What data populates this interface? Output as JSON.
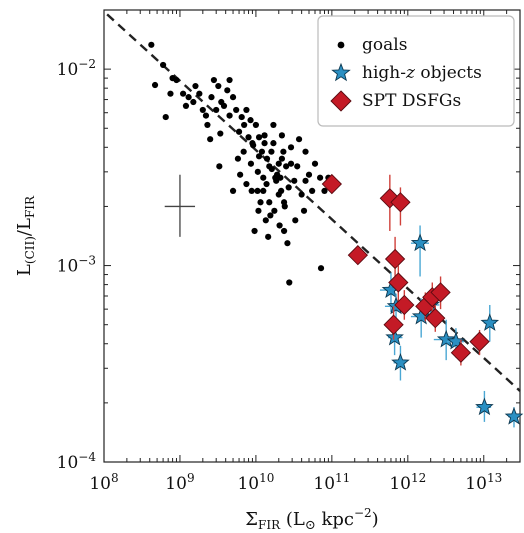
{
  "chart_data": {
    "type": "scatter",
    "xlabel": {
      "main": "Σ",
      "sub": "FIR",
      "rest": " (L",
      "sym": "⊙",
      "unit": " kpc",
      "exp": "−2",
      "close": ")"
    },
    "ylabel": {
      "p1": "L",
      "s1": "(CII)",
      "slash": "/L",
      "s2": "FIR"
    },
    "xscale": "log",
    "yscale": "log",
    "xlim": [
      100000000.0,
      30000000000000.0
    ],
    "ylim": [
      0.0001,
      0.02
    ],
    "x_ticks": [
      {
        "value": 100000000.0,
        "base": "10",
        "exp": "8"
      },
      {
        "value": 1000000000.0,
        "base": "10",
        "exp": "9"
      },
      {
        "value": 10000000000.0,
        "base": "10",
        "exp": "10"
      },
      {
        "value": 100000000000.0,
        "base": "10",
        "exp": "11"
      },
      {
        "value": 1000000000000.0,
        "base": "10",
        "exp": "12"
      },
      {
        "value": 10000000000000.0,
        "base": "10",
        "exp": "13"
      }
    ],
    "y_ticks": [
      {
        "value": 0.0001,
        "base": "10",
        "exp": "−4"
      },
      {
        "value": 0.001,
        "base": "10",
        "exp": "−3"
      },
      {
        "value": 0.01,
        "base": "10",
        "exp": "−2"
      }
    ],
    "legend": {
      "placement": "top-right",
      "entries": [
        {
          "label": "goals",
          "marker": "dot"
        },
        {
          "label_parts": [
            "high-",
            "z",
            " objects"
          ],
          "marker": "star"
        },
        {
          "label": "SPT DSFGs",
          "marker": "diamond"
        }
      ]
    },
    "fit_line": {
      "style": "dashed",
      "color": "#222222",
      "points": [
        [
          110000000.0,
          0.019
        ],
        [
          30000000000000.0,
          0.00023
        ]
      ]
    },
    "typical_error": {
      "x": 1000000000.0,
      "y": 0.002,
      "x_err": [
        630000000.0,
        1580000000.0
      ],
      "y_err": [
        0.0014,
        0.0029
      ]
    },
    "colors": {
      "goals": "#000000",
      "high_z": "#2a8fc2",
      "spt": "#c41a26",
      "spt_err": "#d0403a",
      "high_z_err": "#4aa7d4"
    },
    "series": [
      {
        "name": "goals",
        "marker": "dot",
        "points": [
          [
            420000000.0,
            0.0133
          ],
          [
            470000000.0,
            0.0083
          ],
          [
            600000000.0,
            0.0105
          ],
          [
            650000000.0,
            0.0057
          ],
          [
            750000000.0,
            0.0075
          ],
          [
            800000000.0,
            0.009
          ],
          [
            900000000.0,
            0.0088
          ],
          [
            1100000000.0,
            0.0075
          ],
          [
            1200000000.0,
            0.0065
          ],
          [
            1300000000.0,
            0.0072
          ],
          [
            1500000000.0,
            0.0068
          ],
          [
            1600000000.0,
            0.0082
          ],
          [
            1800000000.0,
            0.0075
          ],
          [
            2000000000.0,
            0.0062
          ],
          [
            2200000000.0,
            0.0058
          ],
          [
            2300000000.0,
            0.0052
          ],
          [
            2600000000.0,
            0.0072
          ],
          [
            2800000000.0,
            0.0088
          ],
          [
            3000000000.0,
            0.0062
          ],
          [
            3200000000.0,
            0.0082
          ],
          [
            3500000000.0,
            0.0068
          ],
          [
            3800000000.0,
            0.0065
          ],
          [
            4200000000.0,
            0.0078
          ],
          [
            4500000000.0,
            0.0058
          ],
          [
            5000000000.0,
            0.0072
          ],
          [
            5500000000.0,
            0.0062
          ],
          [
            6000000000.0,
            0.0048
          ],
          [
            6500000000.0,
            0.0057
          ],
          [
            7000000000.0,
            0.0052
          ],
          [
            7500000000.0,
            0.0062
          ],
          [
            8000000000.0,
            0.0045
          ],
          [
            8500000000.0,
            0.0055
          ],
          [
            9000000000.0,
            0.0042
          ],
          [
            10000000000.0,
            0.0052
          ],
          [
            11000000000.0,
            0.0045
          ],
          [
            12000000000.0,
            0.0038
          ],
          [
            13000000000.0,
            0.0042
          ],
          [
            14000000000.0,
            0.0035
          ],
          [
            15000000000.0,
            0.0032
          ],
          [
            16000000000.0,
            0.0038
          ],
          [
            17000000000.0,
            0.0042
          ],
          [
            18000000000.0,
            0.0028
          ],
          [
            20000000000.0,
            0.0033
          ],
          [
            21000000000.0,
            0.0028
          ],
          [
            23000000000.0,
            0.0038
          ],
          [
            25000000000.0,
            0.0032
          ],
          [
            27000000000.0,
            0.0025
          ],
          [
            29000000000.0,
            0.0033
          ],
          [
            32000000000.0,
            0.0027
          ],
          [
            35000000000.0,
            0.0032
          ],
          [
            40000000000.0,
            0.0023
          ],
          [
            45000000000.0,
            0.0027
          ],
          [
            50000000000.0,
            0.0029
          ],
          [
            55000000000.0,
            0.0024
          ],
          [
            60000000000.0,
            0.0033
          ],
          [
            70000000000.0,
            0.0028
          ],
          [
            80000000000.0,
            0.0024
          ],
          [
            90000000000.0,
            0.0028
          ],
          [
            11000000000.0,
            0.0036
          ],
          [
            10500000000.0,
            0.0024
          ],
          [
            11500000000.0,
            0.0021
          ],
          [
            12500000000.0,
            0.0024
          ],
          [
            13500000000.0,
            0.0017
          ],
          [
            15500000000.0,
            0.0018
          ],
          [
            17500000000.0,
            0.0019
          ],
          [
            20500000000.0,
            0.0016
          ],
          [
            23500000000.0,
            0.0015
          ],
          [
            26000000000.0,
            0.0013
          ],
          [
            33000000000.0,
            0.0017
          ],
          [
            43000000000.0,
            0.0019
          ],
          [
            13000000000.0,
            0.0046
          ],
          [
            9200000000.0,
            0.0041
          ],
          [
            17000000000.0,
            0.0052
          ],
          [
            22000000000.0,
            0.0046
          ],
          [
            4500000000.0,
            0.0088
          ],
          [
            3400000000.0,
            0.0047
          ],
          [
            5800000000.0,
            0.0035
          ],
          [
            3300000000.0,
            0.0032
          ],
          [
            2500000000.0,
            0.0044
          ],
          [
            8600000000.0,
            0.0033
          ],
          [
            6900000000.0,
            0.0038
          ],
          [
            12500000000.0,
            0.0028
          ],
          [
            19000000000.0,
            0.0029
          ],
          [
            23500000000.0,
            0.0021
          ],
          [
            22000000000.0,
            0.0035
          ],
          [
            21500000000.0,
            0.0024
          ],
          [
            18500000000.0,
            0.0027
          ],
          [
            16200000000.0,
            0.0031
          ],
          [
            27500000000.0,
            0.00082
          ],
          [
            72000000000.0,
            0.00097
          ],
          [
            45000000000.0,
            0.0038
          ],
          [
            37000000000.0,
            0.0044
          ],
          [
            29000000000.0,
            0.004
          ],
          [
            8800000000.0,
            0.0024
          ],
          [
            6200000000.0,
            0.0029
          ],
          [
            7500000000.0,
            0.0026
          ],
          [
            5000000000.0,
            0.0024
          ],
          [
            10600000000.0,
            0.003
          ],
          [
            13800000000.0,
            0.0026
          ],
          [
            10800000000.0,
            0.0019
          ],
          [
            15000000000.0,
            0.0021
          ],
          [
            20000000000.0,
            0.0023
          ],
          [
            24000000000.0,
            0.002
          ],
          [
            14500000000.0,
            0.0014
          ],
          [
            9600000000.0,
            0.0015
          ]
        ]
      },
      {
        "name": "high-z objects",
        "marker": "star",
        "points": [
          {
            "x": 600000000000.0,
            "y": 0.00075,
            "xerr": [
              430000000000.0,
              800000000000.0
            ],
            "yerr": [
              0.00058,
              0.00092
            ]
          },
          {
            "x": 700000000000.0,
            "y": 0.00062,
            "xerr": [
              500000000000.0,
              950000000000.0
            ],
            "yerr": [
              0.0005,
              0.00072
            ]
          },
          {
            "x": 670000000000.0,
            "y": 0.00043,
            "xerr": [
              550000000000.0,
              850000000000.0
            ],
            "yerr": [
              0.00035,
              0.00055
            ]
          },
          {
            "x": 800000000000.0,
            "y": 0.00032,
            "xerr": [
              650000000000.0,
              950000000000.0
            ],
            "yerr": [
              0.00026,
              0.00039
            ]
          },
          {
            "x": 1450000000000.0,
            "y": 0.0013,
            "xerr": [
              1100000000000.0,
              1900000000000.0
            ],
            "yerr": [
              0.00088,
              0.0016
            ]
          },
          {
            "x": 1500000000000.0,
            "y": 0.00055,
            "xerr": [
              1100000000000.0,
              2100000000000.0
            ],
            "yerr": [
              0.00043,
              0.00068
            ]
          },
          {
            "x": 2000000000000.0,
            "y": 0.00063,
            "xerr": [
              1600000000000.0,
              2600000000000.0
            ],
            "yerr": [
              0.00052,
              0.00075
            ]
          },
          {
            "x": 3200000000000.0,
            "y": 0.00042,
            "xerr": [
              2200000000000.0,
              5000000000000.0
            ],
            "yerr": [
              0.00033,
              0.00053
            ]
          },
          {
            "x": 4300000000000.0,
            "y": 0.00041,
            "xerr": [
              3300000000000.0,
              5500000000000.0
            ],
            "yerr": [
              0.00034,
              0.00048
            ]
          },
          {
            "x": 12000000000000.0,
            "y": 0.00051,
            "xerr": [
              10000000000000.0,
              14500000000000.0
            ],
            "yerr": [
              0.00041,
              0.00063
            ]
          },
          {
            "x": 10200000000000.0,
            "y": 0.00019,
            "xerr": [
              8000000000000.0,
              12500000000000.0
            ],
            "yerr": [
              0.00016,
              0.00023
            ]
          },
          {
            "x": 25000000000000.0,
            "y": 0.00017,
            "xerr": [
              21000000000000.0,
              30000000000000.0
            ],
            "yerr": [
              0.00015,
              0.00019
            ]
          }
        ]
      },
      {
        "name": "SPT DSFGs",
        "marker": "diamond",
        "points": [
          {
            "x": 100000000000.0,
            "y": 0.0026,
            "xerr": null,
            "yerr": null
          },
          {
            "x": 220000000000.0,
            "y": 0.00113,
            "xerr": null,
            "yerr": null
          },
          {
            "x": 580000000000.0,
            "y": 0.0022,
            "xerr": null,
            "yerr": [
              0.0015,
              0.0029
            ]
          },
          {
            "x": 800000000000.0,
            "y": 0.0021,
            "xerr": null,
            "yerr": [
              0.0016,
              0.0025
            ]
          },
          {
            "x": 680000000000.0,
            "y": 0.00108,
            "xerr": null,
            "yerr": [
              0.00078,
              0.0014
            ]
          },
          {
            "x": 750000000000.0,
            "y": 0.00082,
            "xerr": null,
            "yerr": [
              0.00066,
              0.001
            ]
          },
          {
            "x": 900000000000.0,
            "y": 0.00063,
            "xerr": null,
            "yerr": [
              0.00053,
              0.00075
            ]
          },
          {
            "x": 650000000000.0,
            "y": 0.0005,
            "xerr": null,
            "yerr": [
              0.00042,
              0.00062
            ]
          },
          {
            "x": 1700000000000.0,
            "y": 0.00062,
            "xerr": null,
            "yerr": [
              0.00052,
              0.00073
            ]
          },
          {
            "x": 2100000000000.0,
            "y": 0.00069,
            "xerr": null,
            "yerr": [
              0.00058,
              0.00082
            ]
          },
          {
            "x": 2700000000000.0,
            "y": 0.00073,
            "xerr": null,
            "yerr": [
              0.0006,
              0.00088
            ]
          },
          {
            "x": 2300000000000.0,
            "y": 0.00054,
            "xerr": null,
            "yerr": [
              0.00046,
              0.00063
            ]
          },
          {
            "x": 5000000000000.0,
            "y": 0.00036,
            "xerr": null,
            "yerr": [
              0.00031,
              0.00042
            ]
          },
          {
            "x": 8800000000000.0,
            "y": 0.00041,
            "xerr": null,
            "yerr": [
              0.00035,
              0.00047
            ]
          }
        ]
      }
    ]
  }
}
